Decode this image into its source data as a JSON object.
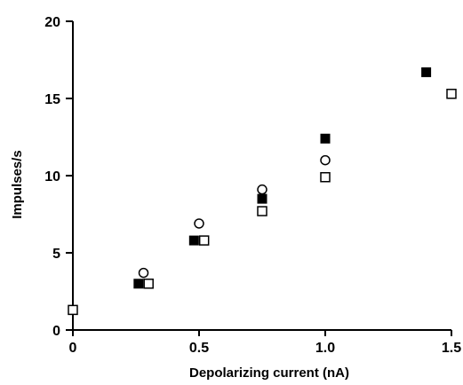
{
  "chart_data": {
    "type": "scatter",
    "xlabel": "Depolarizing current (nA)",
    "ylabel": "Impulses/s",
    "xlim": [
      0,
      1.5
    ],
    "ylim": [
      0,
      20
    ],
    "xticks": [
      "0",
      "0.5",
      "1.0",
      "1.5"
    ],
    "xtick_values": [
      0,
      0.5,
      1.0,
      1.5
    ],
    "yticks": [
      "0",
      "5",
      "10",
      "15",
      "20"
    ],
    "ytick_values": [
      0,
      5,
      10,
      15,
      20
    ],
    "grid": false,
    "series": [
      {
        "marker": "filled-square",
        "color": "#000000",
        "x": [
          0.26,
          0.48,
          0.75,
          1.0,
          1.4
        ],
        "y": [
          3.0,
          5.8,
          8.5,
          12.4,
          16.7
        ]
      },
      {
        "marker": "open-circle",
        "color": "#000000",
        "x": [
          0.28,
          0.5,
          0.75,
          1.0
        ],
        "y": [
          3.7,
          6.9,
          9.1,
          11.0
        ]
      },
      {
        "marker": "open-square",
        "color": "#000000",
        "x": [
          0.0,
          0.3,
          0.52,
          0.75,
          1.0,
          1.5
        ],
        "y": [
          1.3,
          3.0,
          5.8,
          7.7,
          9.9,
          15.3
        ]
      }
    ]
  }
}
